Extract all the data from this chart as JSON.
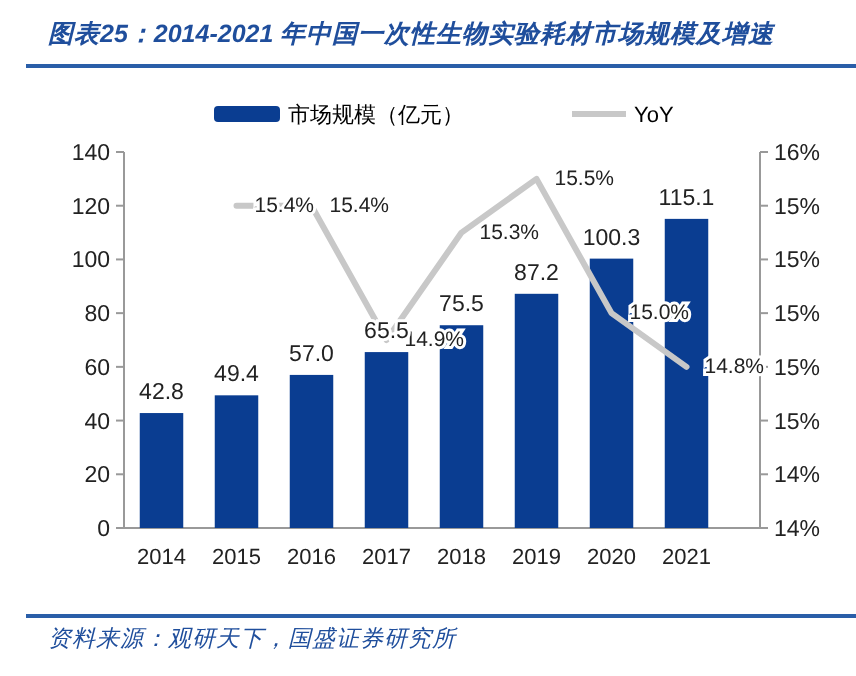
{
  "chart_data": {
    "type": "bar",
    "title": "图表25：2014-2021 年中国一次性生物实验耗材市场规模及增速",
    "categories": [
      "2014",
      "2015",
      "2016",
      "2017",
      "2018",
      "2019",
      "2020",
      "2021"
    ],
    "series": [
      {
        "name": "市场规模（亿元）",
        "color": "#0a3d91",
        "values": [
          42.8,
          49.4,
          57.0,
          65.5,
          75.5,
          87.2,
          100.3,
          115.1
        ],
        "value_labels": [
          "42.8",
          "49.4",
          "57.0",
          "65.5",
          "75.5",
          "87.2",
          "100.3",
          "115.1"
        ]
      },
      {
        "name": "YoY",
        "type": "line",
        "axis": "y2",
        "color": "#c8c8c8",
        "values": [
          null,
          15.4,
          15.4,
          14.9,
          15.3,
          15.5,
          15.0,
          14.8
        ],
        "value_labels": [
          null,
          "15.4%",
          "15.4%",
          "14.9%",
          "15.3%",
          "15.5%",
          "15.0%",
          "14.8%"
        ]
      }
    ],
    "ylim": [
      0,
      140
    ],
    "yticks": [
      0,
      20,
      40,
      60,
      80,
      100,
      120,
      140
    ],
    "y2lim": [
      14.2,
      15.6
    ],
    "y2ticks": [
      {
        "value": 14.2,
        "label": "14%"
      },
      {
        "value": 14.4,
        "label": "14%"
      },
      {
        "value": 14.6,
        "label": "15%"
      },
      {
        "value": 14.8,
        "label": "15%"
      },
      {
        "value": 15.0,
        "label": "15%"
      },
      {
        "value": 15.2,
        "label": "15%"
      },
      {
        "value": 15.4,
        "label": "15%"
      },
      {
        "value": 15.6,
        "label": "16%"
      }
    ],
    "legend": "top",
    "grid": false,
    "marker": "none",
    "annotations": [
      "资料来源：观研天下，国盛证券研究所"
    ]
  }
}
